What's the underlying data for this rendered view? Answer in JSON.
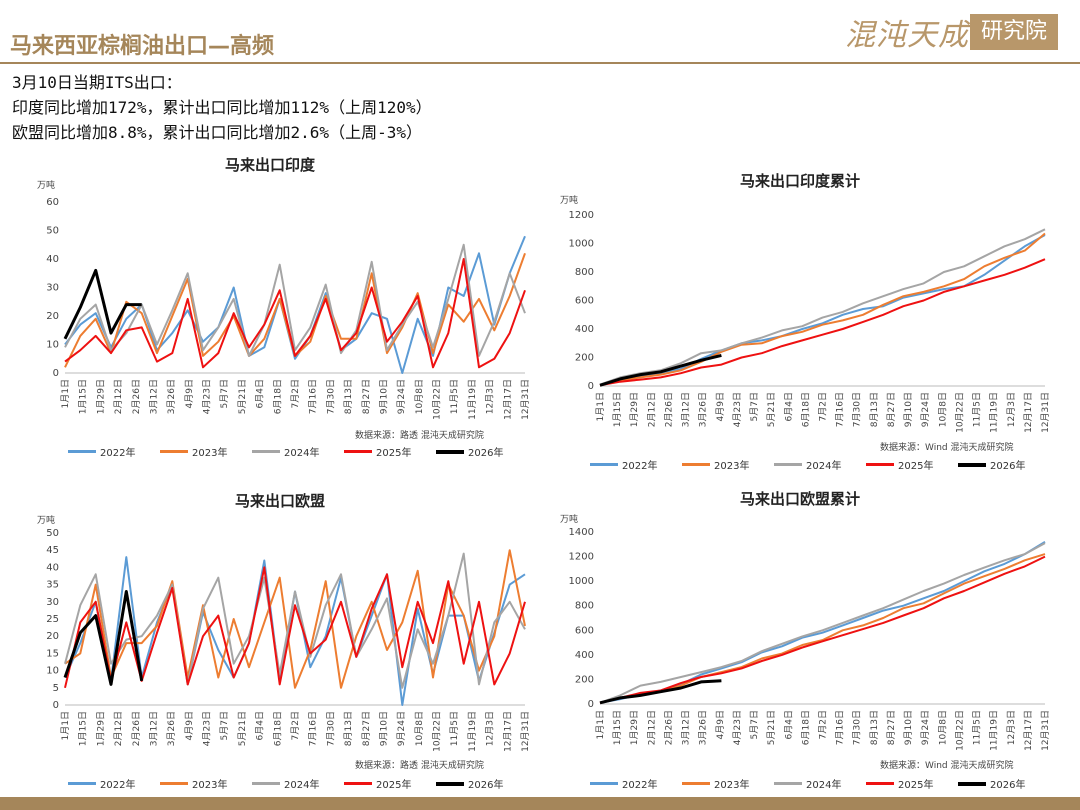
{
  "header": {
    "title": "马来西亚棕榈油出口—高频"
  },
  "logo": {
    "script_text": "混沌天成",
    "box_text": "研究院"
  },
  "notes": {
    "line1": "3月10日当期ITS出口：",
    "line2": "印度同比增加172%，累计出口同比增加112%（上周120%）",
    "line3": "欧盟同比增加8.8%，累计出口同比增加2.6%（上周-3%）"
  },
  "colors": {
    "2022年": "#5b9bd5",
    "2023年": "#ed7d31",
    "2024年": "#a5a5a5",
    "2025年": "#ee1111",
    "2026年": "#000000"
  },
  "x_labels": [
    "1月1日",
    "1月15日",
    "1月29日",
    "2月12日",
    "2月26日",
    "3月12日",
    "3月26日",
    "4月9日",
    "4月23日",
    "5月7日",
    "5月21日",
    "6月4日",
    "6月18日",
    "7月2日",
    "7月16日",
    "7月30日",
    "8月13日",
    "8月27日",
    "9月10日",
    "9月24日",
    "10月8日",
    "10月22日",
    "11月5日",
    "11月19日",
    "12月3日",
    "12月17日",
    "12月31日"
  ],
  "chart_data": [
    {
      "type": "line",
      "title": "马来出口印度",
      "unit": "万吨",
      "source": "数据来源：路透  混沌天成研究院",
      "ylim": [
        0,
        60
      ],
      "yticks": [
        0,
        10,
        20,
        30,
        40,
        50,
        60
      ],
      "series": [
        {
          "name": "2022年",
          "values": [
            10,
            17,
            21,
            9,
            19,
            24,
            8,
            14,
            22,
            11,
            16,
            30,
            6,
            9,
            26,
            5,
            13,
            28,
            8,
            12,
            21,
            19,
            0,
            19,
            6,
            30,
            27,
            42,
            17,
            35,
            48
          ]
        },
        {
          "name": "2023年",
          "values": [
            2,
            13,
            19,
            7,
            25,
            21,
            7,
            20,
            33,
            6,
            11,
            20,
            6,
            12,
            26,
            6,
            11,
            27,
            12,
            12,
            35,
            7,
            16,
            28,
            7,
            24,
            18,
            26,
            15,
            27,
            42
          ]
        },
        {
          "name": "2024年",
          "values": [
            9,
            19,
            24,
            8,
            14,
            24,
            10,
            22,
            35,
            8,
            16,
            26,
            6,
            17,
            38,
            8,
            16,
            31,
            7,
            15,
            39,
            8,
            17,
            25,
            9,
            26,
            45,
            6,
            18,
            35,
            21
          ]
        },
        {
          "name": "2025年",
          "values": [
            4,
            8,
            13,
            7,
            15,
            16,
            4,
            7,
            26,
            2,
            7,
            21,
            9,
            17,
            29,
            6,
            13,
            26,
            8,
            14,
            30,
            11,
            18,
            27,
            2,
            14,
            40,
            2,
            5,
            14,
            29
          ]
        },
        {
          "name": "2026年",
          "values": [
            12,
            23,
            36,
            14,
            24,
            24
          ]
        }
      ]
    },
    {
      "type": "line",
      "title": "马来出口印度累计",
      "unit": "万吨",
      "source": "数据来源：Wind  混沌天成研究院",
      "ylim": [
        0,
        1200
      ],
      "yticks": [
        0,
        200,
        400,
        600,
        800,
        1000,
        1200
      ],
      "series": [
        {
          "name": "2022年",
          "values": [
            10,
            45,
            70,
            90,
            120,
            190,
            250,
            300,
            320,
            350,
            400,
            440,
            500,
            540,
            560,
            620,
            650,
            680,
            700,
            780,
            880,
            980,
            1060
          ]
        },
        {
          "name": "2023年",
          "values": [
            5,
            40,
            60,
            80,
            110,
            170,
            240,
            290,
            300,
            350,
            380,
            430,
            460,
            500,
            570,
            630,
            660,
            700,
            750,
            840,
            900,
            950,
            1070
          ]
        },
        {
          "name": "2024年",
          "values": [
            10,
            60,
            90,
            110,
            160,
            230,
            250,
            300,
            340,
            390,
            420,
            480,
            520,
            580,
            630,
            680,
            720,
            800,
            840,
            910,
            980,
            1030,
            1100
          ]
        },
        {
          "name": "2025年",
          "values": [
            5,
            30,
            45,
            60,
            90,
            130,
            150,
            200,
            230,
            280,
            320,
            360,
            400,
            450,
            500,
            560,
            600,
            660,
            700,
            740,
            780,
            830,
            890
          ]
        },
        {
          "name": "2026年",
          "values": [
            5,
            50,
            80,
            100,
            140,
            180,
            215
          ]
        }
      ]
    },
    {
      "type": "line",
      "title": "马来出口欧盟",
      "unit": "万吨",
      "source": "数据来源：路透  混沌天成研究院",
      "ylim": [
        0,
        50
      ],
      "yticks": [
        0,
        5,
        10,
        15,
        20,
        25,
        30,
        35,
        40,
        45,
        50
      ],
      "series": [
        {
          "name": "2022年",
          "values": [
            8,
            18,
            30,
            7,
            43,
            8,
            24,
            35,
            6,
            27,
            16,
            8,
            18,
            42,
            7,
            33,
            11,
            20,
            37,
            14,
            26,
            38,
            0,
            28,
            9,
            26,
            26,
            7,
            21,
            35,
            38
          ]
        },
        {
          "name": "2023年",
          "values": [
            12,
            15,
            35,
            8,
            18,
            18,
            23,
            36,
            8,
            29,
            8,
            25,
            11,
            24,
            37,
            5,
            16,
            36,
            5,
            20,
            30,
            16,
            24,
            39,
            8,
            35,
            26,
            10,
            20,
            45,
            23
          ]
        },
        {
          "name": "2024年",
          "values": [
            12,
            29,
            38,
            12,
            19,
            20,
            26,
            35,
            6,
            28,
            37,
            12,
            20,
            37,
            9,
            33,
            14,
            29,
            38,
            14,
            22,
            31,
            5,
            22,
            12,
            26,
            44,
            6,
            24,
            30,
            22
          ]
        },
        {
          "name": "2025年",
          "values": [
            5,
            24,
            30,
            7,
            24,
            7,
            21,
            34,
            6,
            20,
            26,
            8,
            18,
            40,
            6,
            29,
            15,
            19,
            30,
            14,
            28,
            38,
            11,
            30,
            18,
            36,
            12,
            30,
            6,
            15,
            30
          ]
        },
        {
          "name": "2026年",
          "values": [
            8,
            21,
            26,
            6,
            33,
            7
          ]
        }
      ]
    },
    {
      "type": "line",
      "title": "马来出口欧盟累计",
      "unit": "万吨",
      "source": "数据来源：Wind  混沌天成研究院",
      "ylim": [
        0,
        1400
      ],
      "yticks": [
        0,
        200,
        400,
        600,
        800,
        1000,
        1200,
        1400
      ],
      "series": [
        {
          "name": "2022年",
          "values": [
            10,
            40,
            80,
            110,
            160,
            240,
            290,
            340,
            420,
            470,
            540,
            580,
            640,
            700,
            760,
            800,
            860,
            920,
            1000,
            1080,
            1140,
            1220,
            1320
          ]
        },
        {
          "name": "2023年",
          "values": [
            10,
            50,
            70,
            100,
            150,
            220,
            260,
            300,
            370,
            410,
            480,
            520,
            600,
            640,
            700,
            780,
            820,
            900,
            980,
            1040,
            1100,
            1170,
            1220
          ]
        },
        {
          "name": "2024年",
          "values": [
            10,
            70,
            150,
            180,
            220,
            260,
            300,
            350,
            430,
            490,
            550,
            600,
            660,
            720,
            780,
            850,
            920,
            980,
            1050,
            1110,
            1170,
            1220,
            1310
          ]
        },
        {
          "name": "2025年",
          "values": [
            10,
            50,
            90,
            110,
            170,
            220,
            250,
            290,
            350,
            400,
            460,
            510,
            560,
            610,
            660,
            720,
            780,
            860,
            920,
            990,
            1060,
            1120,
            1200
          ]
        },
        {
          "name": "2026年",
          "values": [
            10,
            50,
            70,
            100,
            130,
            180,
            190
          ]
        }
      ]
    }
  ]
}
